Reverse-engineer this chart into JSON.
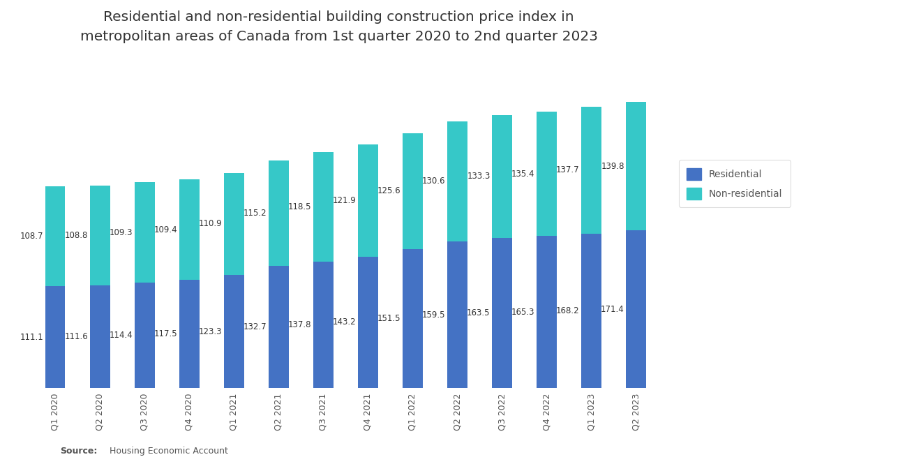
{
  "title": "Residential and non-residential building construction price index in\nmetropolitan areas of Canada from 1st quarter 2020 to 2nd quarter 2023",
  "categories": [
    "Q1 2020",
    "Q2 2020",
    "Q3 2020",
    "Q4 2020",
    "Q1 2021",
    "Q2 2021",
    "Q3 2021",
    "Q4 2021",
    "Q1 2022",
    "Q2 2022",
    "Q3 2022",
    "Q4 2022",
    "Q1 2023",
    "Q2 2023"
  ],
  "residential": [
    111.1,
    111.6,
    114.4,
    117.5,
    123.3,
    132.7,
    137.8,
    143.2,
    151.5,
    159.5,
    163.5,
    165.3,
    168.2,
    171.4
  ],
  "non_residential": [
    108.7,
    108.8,
    109.3,
    109.4,
    110.9,
    115.2,
    118.5,
    121.9,
    125.6,
    130.6,
    133.3,
    135.4,
    137.7,
    139.8
  ],
  "residential_color": "#4472c4",
  "non_residential_color": "#36c8c8",
  "background_color": "#ffffff",
  "title_fontsize": 14.5,
  "label_fontsize": 8.5,
  "tick_fontsize": 9,
  "legend_fontsize": 10,
  "label_color": "#333333",
  "tick_color": "#555555",
  "source_bold": "Source:",
  "source_normal": "  Housing Economic Account",
  "bar_width": 0.45
}
